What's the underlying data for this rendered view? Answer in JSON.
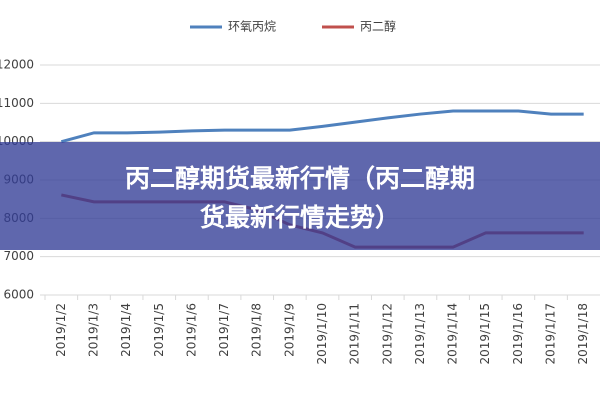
{
  "banner": {
    "lines": [
      "丙二醇期货最新行情（丙二醇期",
      "货最新行情走势）"
    ]
  },
  "chart_data": {
    "type": "line",
    "categories": [
      "2019/1/2",
      "2019/1/3",
      "2019/1/4",
      "2019/1/5",
      "2019/1/6",
      "2019/1/7",
      "2019/1/8",
      "2019/1/9",
      "2019/1/10",
      "2019/1/11",
      "2019/1/12",
      "2019/1/13",
      "2019/1/14",
      "2019/1/15",
      "2019/1/16",
      "2019/1/17",
      "2019/1/18"
    ],
    "series": [
      {
        "name": "环氧丙烷",
        "color": "#4f81bd",
        "values": [
          10000,
          10230,
          10230,
          10250,
          10280,
          10300,
          10300,
          10300,
          10400,
          10510,
          10620,
          10720,
          10800,
          10800,
          10800,
          10720,
          10720
        ]
      },
      {
        "name": "丙二醇",
        "color": "#c0504d",
        "values": [
          8610,
          8430,
          8430,
          8430,
          8430,
          8430,
          8220,
          7830,
          7620,
          7250,
          7250,
          7250,
          7250,
          7620,
          7620,
          7620,
          7620
        ]
      }
    ],
    "ylim": [
      6000,
      12000
    ],
    "yticks": [
      6000,
      7000,
      8000,
      9000,
      10000,
      11000,
      12000
    ],
    "grid": true,
    "legend": "top"
  }
}
